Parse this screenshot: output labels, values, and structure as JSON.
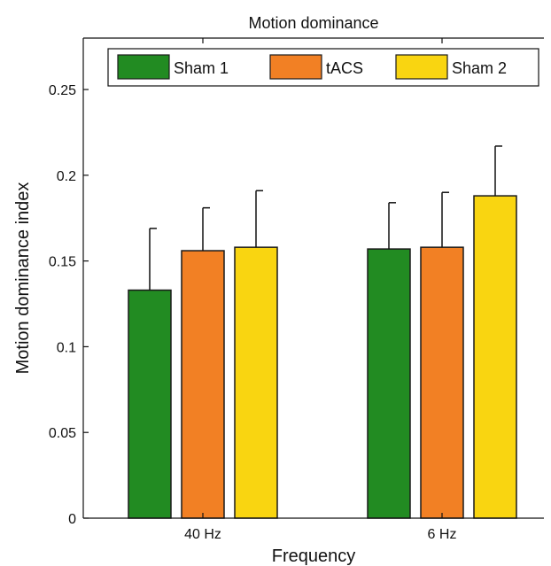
{
  "chart_data": {
    "type": "bar",
    "title": "Motion dominance",
    "xlabel": "Frequency",
    "ylabel": "Motion dominance index",
    "categories": [
      "40 Hz",
      "6 Hz"
    ],
    "series": [
      {
        "name": "Sham 1",
        "color": "#228B22",
        "values": [
          0.133,
          0.157
        ],
        "errors": [
          0.036,
          0.027
        ]
      },
      {
        "name": "tACS",
        "color": "#F28024",
        "values": [
          0.156,
          0.158
        ],
        "errors": [
          0.025,
          0.032
        ]
      },
      {
        "name": "Sham 2",
        "color": "#F9D511",
        "values": [
          0.158,
          0.188
        ],
        "errors": [
          0.033,
          0.029
        ]
      }
    ],
    "ylim": [
      0,
      0.28
    ],
    "yticks": [
      0,
      0.05,
      0.1,
      0.15,
      0.2,
      0.25
    ],
    "ytick_labels": [
      "0",
      "0.05",
      "0.1",
      "0.15",
      "0.2",
      "0.25"
    ],
    "grid": false,
    "legend_position": "top",
    "legend_orientation": "horizontal"
  }
}
